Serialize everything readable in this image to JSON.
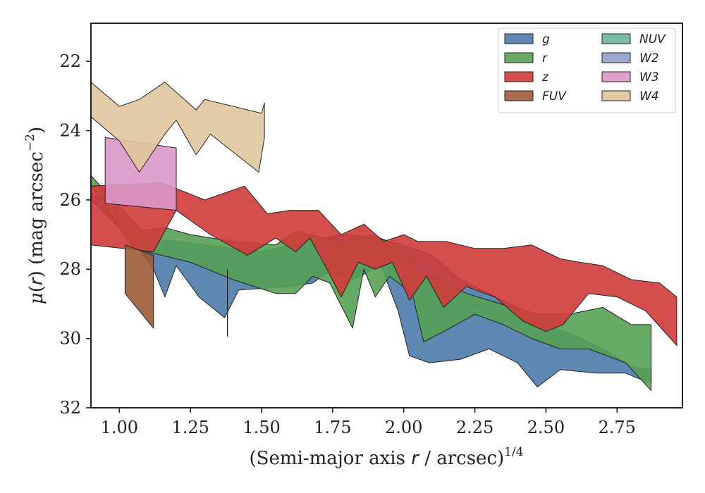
{
  "chart_data": {
    "type": "area",
    "xlabel": "(Semi-major axis r / arcsec)^1/4",
    "xlabel_parts": {
      "prefix": "(Semi-major axis ",
      "var": "r",
      "suffix": " / arcsec)",
      "sup": "1/4"
    },
    "ylabel": "μ(r) (mag arcsec^−2)",
    "ylabel_parts": {
      "mu": "μ",
      "paren_open": "(",
      "var": "r",
      "paren_close": ")",
      "unit": " (mag arcsec",
      "sup": "−2",
      "close": ")"
    },
    "xlim": [
      0.9,
      2.98
    ],
    "ylim": [
      32,
      20.9
    ],
    "y_inverted": true,
    "xticks": [
      1.0,
      1.25,
      1.5,
      1.75,
      2.0,
      2.25,
      2.5,
      2.75
    ],
    "xtick_labels": [
      "1.00",
      "1.25",
      "1.50",
      "1.75",
      "2.00",
      "2.25",
      "2.50",
      "2.75"
    ],
    "yticks": [
      22,
      24,
      26,
      28,
      30,
      32
    ],
    "ytick_labels": [
      "22",
      "24",
      "26",
      "28",
      "30",
      "32"
    ],
    "grid": false,
    "legend_placement": "top-right",
    "legend_columns": 2,
    "series": [
      {
        "name": "g",
        "color": "#4c7ba9",
        "upper": [
          [
            0.9,
            25.8
          ],
          [
            1.1,
            27.1
          ],
          [
            1.3,
            27.3
          ],
          [
            1.5,
            27.5
          ],
          [
            1.6,
            27.3
          ],
          [
            1.65,
            27.0
          ],
          [
            1.7,
            27.1
          ],
          [
            1.8,
            27.0
          ],
          [
            1.9,
            27.1
          ],
          [
            2.0,
            27.3
          ],
          [
            2.1,
            27.6
          ],
          [
            2.2,
            28.3
          ],
          [
            2.3,
            28.7
          ],
          [
            2.4,
            29.1
          ],
          [
            2.5,
            29.6
          ],
          [
            2.6,
            29.9
          ],
          [
            2.7,
            30.3
          ],
          [
            2.8,
            30.8
          ],
          [
            2.87,
            30.9
          ]
        ],
        "lower": [
          [
            0.9,
            26.0
          ],
          [
            1.05,
            27.2
          ],
          [
            1.12,
            28.0
          ],
          [
            1.16,
            28.8
          ],
          [
            1.2,
            27.9
          ],
          [
            1.28,
            28.8
          ],
          [
            1.37,
            29.4
          ],
          [
            1.42,
            28.6
          ],
          [
            1.6,
            28.5
          ],
          [
            1.68,
            28.4
          ],
          [
            1.73,
            28.1
          ],
          [
            1.82,
            28.3
          ],
          [
            1.92,
            27.9
          ],
          [
            1.98,
            29.2
          ],
          [
            2.02,
            30.5
          ],
          [
            2.09,
            30.7
          ],
          [
            2.2,
            30.6
          ],
          [
            2.3,
            30.3
          ],
          [
            2.4,
            30.7
          ],
          [
            2.47,
            31.4
          ],
          [
            2.55,
            30.9
          ],
          [
            2.68,
            31.0
          ],
          [
            2.78,
            31.0
          ],
          [
            2.87,
            31.3
          ]
        ]
      },
      {
        "name": "r",
        "color": "#55a155",
        "upper": [
          [
            0.9,
            25.3
          ],
          [
            1.08,
            26.9
          ],
          [
            1.16,
            26.8
          ],
          [
            1.25,
            27.0
          ],
          [
            1.4,
            27.2
          ],
          [
            1.55,
            27.3
          ],
          [
            1.62,
            26.9
          ],
          [
            1.72,
            27.1
          ],
          [
            1.8,
            27.2
          ],
          [
            1.88,
            27.0
          ],
          [
            1.95,
            27.2
          ],
          [
            2.0,
            27.4
          ],
          [
            2.05,
            28.1
          ],
          [
            2.15,
            28.4
          ],
          [
            2.22,
            28.7
          ],
          [
            2.3,
            28.9
          ],
          [
            2.38,
            29.1
          ],
          [
            2.48,
            29.3
          ],
          [
            2.58,
            29.3
          ],
          [
            2.7,
            29.1
          ],
          [
            2.8,
            29.6
          ],
          [
            2.87,
            29.6
          ]
        ],
        "lower": [
          [
            0.9,
            25.6
          ],
          [
            1.05,
            27.4
          ],
          [
            1.15,
            27.6
          ],
          [
            1.25,
            27.8
          ],
          [
            1.4,
            28.3
          ],
          [
            1.55,
            28.7
          ],
          [
            1.62,
            28.7
          ],
          [
            1.68,
            28.2
          ],
          [
            1.74,
            28.4
          ],
          [
            1.82,
            29.7
          ],
          [
            1.86,
            28.0
          ],
          [
            1.9,
            28.8
          ],
          [
            1.95,
            28.2
          ],
          [
            2.03,
            28.7
          ],
          [
            2.07,
            30.1
          ],
          [
            2.14,
            29.8
          ],
          [
            2.25,
            29.3
          ],
          [
            2.35,
            29.6
          ],
          [
            2.45,
            30.0
          ],
          [
            2.55,
            30.3
          ],
          [
            2.65,
            30.3
          ],
          [
            2.78,
            30.7
          ],
          [
            2.87,
            31.5
          ]
        ]
      },
      {
        "name": "z",
        "color": "#d03b3b",
        "upper": [
          [
            0.9,
            25.6
          ],
          [
            1.15,
            25.5
          ],
          [
            1.3,
            26.0
          ],
          [
            1.44,
            25.6
          ],
          [
            1.52,
            26.4
          ],
          [
            1.6,
            26.3
          ],
          [
            1.7,
            26.3
          ],
          [
            1.78,
            27.0
          ],
          [
            1.86,
            26.7
          ],
          [
            1.93,
            27.2
          ],
          [
            2.0,
            27.0
          ],
          [
            2.05,
            27.2
          ],
          [
            2.15,
            27.2
          ],
          [
            2.25,
            27.4
          ],
          [
            2.35,
            27.4
          ],
          [
            2.45,
            27.3
          ],
          [
            2.55,
            27.7
          ],
          [
            2.62,
            27.8
          ],
          [
            2.7,
            27.9
          ],
          [
            2.8,
            28.3
          ],
          [
            2.9,
            28.4
          ],
          [
            2.96,
            28.8
          ]
        ],
        "lower": [
          [
            0.9,
            27.3
          ],
          [
            1.12,
            27.5
          ],
          [
            1.2,
            26.3
          ],
          [
            1.32,
            27.0
          ],
          [
            1.45,
            27.6
          ],
          [
            1.55,
            27.1
          ],
          [
            1.62,
            27.5
          ],
          [
            1.67,
            27.1
          ],
          [
            1.73,
            28.0
          ],
          [
            1.78,
            28.8
          ],
          [
            1.84,
            27.8
          ],
          [
            1.9,
            28.0
          ],
          [
            1.96,
            27.8
          ],
          [
            2.02,
            28.9
          ],
          [
            2.08,
            28.2
          ],
          [
            2.14,
            29.1
          ],
          [
            2.22,
            28.5
          ],
          [
            2.32,
            28.8
          ],
          [
            2.42,
            29.5
          ],
          [
            2.5,
            29.8
          ],
          [
            2.56,
            29.6
          ],
          [
            2.65,
            28.7
          ],
          [
            2.75,
            28.8
          ],
          [
            2.85,
            29.2
          ],
          [
            2.96,
            30.2
          ]
        ]
      },
      {
        "name": "FUV",
        "color": "#9c5b38",
        "upper": [
          [
            1.02,
            27.3
          ],
          [
            1.12,
            27.6
          ]
        ],
        "lower": [
          [
            1.02,
            28.7
          ],
          [
            1.12,
            29.7
          ]
        ]
      },
      {
        "name": "NUV",
        "color": "#6cb49a",
        "upper": [
          [
            1.38,
            28.0
          ]
        ],
        "lower": [
          [
            1.38,
            29.95
          ]
        ]
      },
      {
        "name": "W2",
        "color": "#8e9ec6",
        "upper": [],
        "lower": []
      },
      {
        "name": "W3",
        "color": "#dc98c9",
        "upper": [
          [
            0.95,
            24.2
          ],
          [
            1.2,
            24.5
          ]
        ],
        "lower": [
          [
            0.95,
            26.1
          ],
          [
            1.2,
            26.3
          ]
        ]
      },
      {
        "name": "W4",
        "color": "#e1c59e",
        "upper": [
          [
            0.9,
            22.6
          ],
          [
            1.0,
            23.3
          ],
          [
            1.07,
            23.1
          ],
          [
            1.16,
            22.6
          ],
          [
            1.27,
            23.4
          ],
          [
            1.3,
            23.1
          ],
          [
            1.5,
            23.5
          ],
          [
            1.51,
            23.2
          ]
        ],
        "lower": [
          [
            0.9,
            23.6
          ],
          [
            1.0,
            24.3
          ],
          [
            1.07,
            25.2
          ],
          [
            1.16,
            24.1
          ],
          [
            1.2,
            23.7
          ],
          [
            1.27,
            24.7
          ],
          [
            1.32,
            24.1
          ],
          [
            1.49,
            25.2
          ],
          [
            1.51,
            24.2
          ]
        ]
      }
    ]
  }
}
